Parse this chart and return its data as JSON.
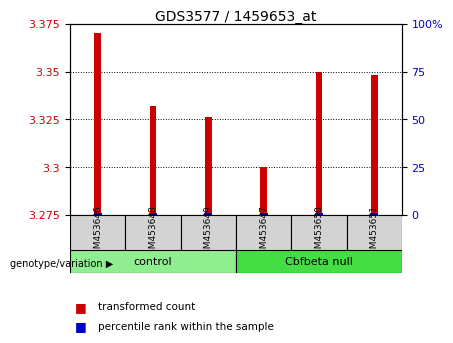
{
  "title": "GDS3577 / 1459653_at",
  "samples": [
    "GSM453646",
    "GSM453648",
    "GSM453649",
    "GSM453647",
    "GSM453650",
    "GSM453651"
  ],
  "groups": [
    "control",
    "control",
    "control",
    "Cbfbeta null",
    "Cbfbeta null",
    "Cbfbeta null"
  ],
  "group_spans": [
    [
      0,
      2,
      "control",
      "#90ee90"
    ],
    [
      3,
      5,
      "Cbfbeta null",
      "#44dd44"
    ]
  ],
  "transformed_counts": [
    3.37,
    3.332,
    3.326,
    3.3,
    3.35,
    3.348
  ],
  "percentile_ranks": [
    1,
    1,
    1,
    1,
    1,
    1
  ],
  "ylim_left": [
    3.275,
    3.375
  ],
  "yticks_left": [
    3.275,
    3.3,
    3.325,
    3.35,
    3.375
  ],
  "ylim_right": [
    0,
    100
  ],
  "yticks_right": [
    0,
    25,
    50,
    75,
    100
  ],
  "bar_color_red": "#cc0000",
  "bar_color_blue": "#0000cc",
  "bar_width": 0.12,
  "background_color": "#ffffff",
  "plot_bg_color": "#ffffff",
  "tick_label_color_left": "#cc0000",
  "tick_label_color_right": "#0000cc",
  "grid_color": "#000000",
  "legend_red_label": "transformed count",
  "legend_blue_label": "percentile rank within the sample",
  "genotype_label": "genotype/variation"
}
